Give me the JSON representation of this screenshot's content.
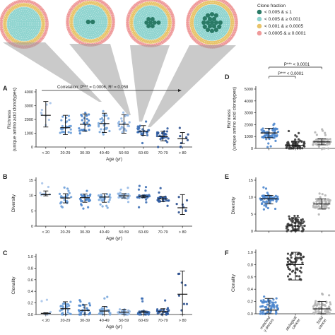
{
  "legend": {
    "title": "Clone fraction",
    "entries": [
      {
        "label": "< 0.005 & ≤ 1",
        "color": "#2a7a66"
      },
      {
        "label": "< 0.005 & ≥ 0.001",
        "color": "#8fd4cf"
      },
      {
        "label": "< 0.001 & ≥ 0.0005",
        "color": "#e8c46a"
      },
      {
        "label": "< 0.0005 & ≥ 0.0001",
        "color": "#ef9a9a"
      }
    ]
  },
  "chart_data": [
    {
      "panel": "A",
      "type": "scatter",
      "categories": [
        "< 20",
        "20-29",
        "30-39",
        "40-49",
        "50-59",
        "60-69",
        "70-79",
        "> 80"
      ],
      "medians": [
        2300,
        1400,
        1650,
        1700,
        1650,
        1150,
        750,
        600
      ],
      "errors_low": [
        1450,
        900,
        1150,
        1050,
        1000,
        850,
        450,
        250
      ],
      "errors_high": [
        3300,
        2300,
        2400,
        2450,
        2350,
        1550,
        1150,
        1050
      ],
      "ylabel": "Richness\n(unique amino acid clonotypes)",
      "xlabel": "Age (yr)",
      "yticks": [
        "0",
        "1000",
        "2000",
        "3000",
        "4000"
      ],
      "ylim": [
        0,
        4000
      ],
      "annotation": "Correlation: P*** = 0.0006, R² = 0.058"
    },
    {
      "panel": "B",
      "type": "scatter",
      "categories": [
        "< 20",
        "20-29",
        "30-39",
        "40-49",
        "50-59",
        "60-69",
        "70-79",
        "> 80"
      ],
      "medians": [
        10.3,
        9.2,
        9.3,
        9.5,
        9.9,
        9.7,
        8.9,
        6.0
      ],
      "errors_low": [
        9.9,
        7.6,
        7.8,
        7.8,
        9.2,
        9.3,
        8.0,
        3.8
      ],
      "errors_high": [
        11.5,
        10.6,
        10.5,
        10.6,
        10.6,
        10.1,
        9.6,
        10.3
      ],
      "ylabel": "Diversity",
      "xlabel": "Age (yr)",
      "yticks": [
        "0",
        "5",
        "10",
        "15"
      ],
      "ylim": [
        0,
        15
      ]
    },
    {
      "panel": "C",
      "type": "scatter",
      "categories": [
        "< 20",
        "20-29",
        "30-39",
        "40-49",
        "50-59",
        "60-69",
        "70-79",
        "> 80"
      ],
      "medians": [
        0.02,
        0.1,
        0.07,
        0.06,
        0.04,
        0.04,
        0.05,
        0.35
      ],
      "errors_low": [
        0.0,
        0.0,
        0.0,
        0.0,
        0.0,
        0.0,
        0.0,
        0.0
      ],
      "errors_high": [
        0.03,
        0.22,
        0.17,
        0.14,
        0.09,
        0.06,
        0.1,
        0.75
      ],
      "ylabel": "Clonality",
      "xlabel": "Age (yr)",
      "yticks": [
        "0.0",
        "0.2",
        "0.4",
        "0.6",
        "0.8",
        "1.0"
      ],
      "ylim": [
        0,
        1.0
      ]
    },
    {
      "panel": "D",
      "type": "scatter",
      "categories": [
        "Age-matched healthy donors",
        "Hematological cancer",
        "Solid cancer"
      ],
      "medians": [
        1300,
        250,
        550
      ],
      "errors_low": [
        900,
        0,
        300
      ],
      "errors_high": [
        1700,
        600,
        800
      ],
      "ylabel": "Richness\n(unique amino acid clonotypes)",
      "yticks": [
        "0",
        "1000",
        "2000",
        "3000",
        "4000",
        "5000"
      ],
      "ylim": [
        0,
        5000
      ],
      "annotations": [
        "P*** < 0.0001",
        "P*** < 0.0001"
      ]
    },
    {
      "panel": "E",
      "type": "scatter",
      "categories": [
        "Age-matched healthy donors",
        "Hematological cancer",
        "Solid cancer"
      ],
      "medians": [
        9.5,
        1.5,
        8.0
      ],
      "errors_low": [
        8.0,
        0.2,
        6.5
      ],
      "errors_high": [
        10.5,
        4.0,
        9.5
      ],
      "ylabel": "Diversity",
      "yticks": [
        "0",
        "5",
        "10",
        "15"
      ],
      "ylim": [
        0,
        15
      ]
    },
    {
      "panel": "F",
      "type": "scatter",
      "categories": [
        "Age-matched healthy donors",
        "Hematological cancer",
        "Solid cancer"
      ],
      "xtick_labels": [
        "matched\ny donors",
        "atological\ncancer",
        "Solid\ncancer"
      ],
      "medians": [
        0.06,
        0.8,
        0.08
      ],
      "errors_low": [
        0.0,
        0.55,
        0.0
      ],
      "errors_high": [
        0.25,
        1.0,
        0.2
      ],
      "ylabel": "Clonality",
      "yticks": [
        "0.0",
        "0.2",
        "0.4",
        "0.6",
        "0.8",
        "1.0"
      ],
      "ylim": [
        0,
        1.0
      ]
    }
  ],
  "panel_letters": [
    "A",
    "B",
    "C",
    "D",
    "E",
    "F"
  ]
}
